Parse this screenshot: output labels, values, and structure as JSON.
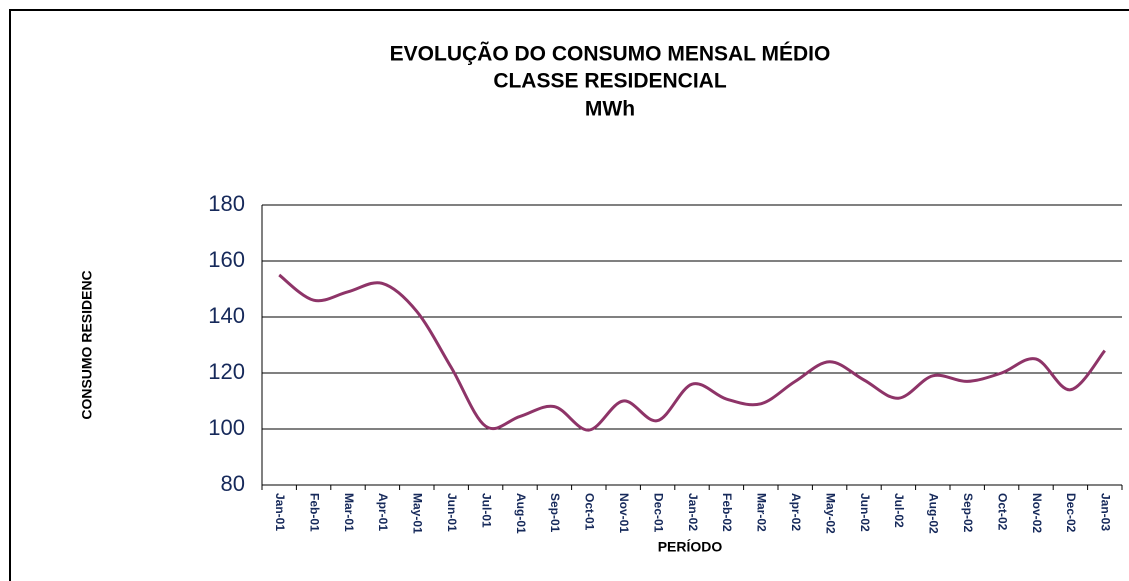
{
  "chart_data": {
    "type": "line",
    "title": [
      "EVOLUÇÃO DO CONSUMO MENSAL MÉDIO",
      "CLASSE RESIDENCIAL",
      "MWh"
    ],
    "y_label": "CONSUMO RESIDENC",
    "x_label": "PERÍODO",
    "categories": [
      "Jan-01",
      "Feb-01",
      "Mar-01",
      "Apr-01",
      "May-01",
      "Jun-01",
      "Jul-01",
      "Aug-01",
      "Sep-01",
      "Oct-01",
      "Nov-01",
      "Dec-01",
      "Jan-02",
      "Feb-02",
      "Mar-02",
      "Apr-02",
      "May-02",
      "Jun-02",
      "Jul-02",
      "Aug-02",
      "Sep-02",
      "Oct-02",
      "Nov-02",
      "Dec-02",
      "Jan-03"
    ],
    "values": [
      155,
      146,
      149,
      152,
      142,
      122,
      101,
      104.5,
      108,
      99.6,
      110,
      103,
      116,
      110.7,
      109,
      117,
      124,
      117.5,
      111,
      119,
      117,
      120,
      125,
      114,
      128
    ],
    "color": "#8e3468",
    "ylim": [
      80,
      180
    ],
    "yticks": [
      80,
      100,
      120,
      140,
      160,
      180
    ],
    "grid": true
  }
}
